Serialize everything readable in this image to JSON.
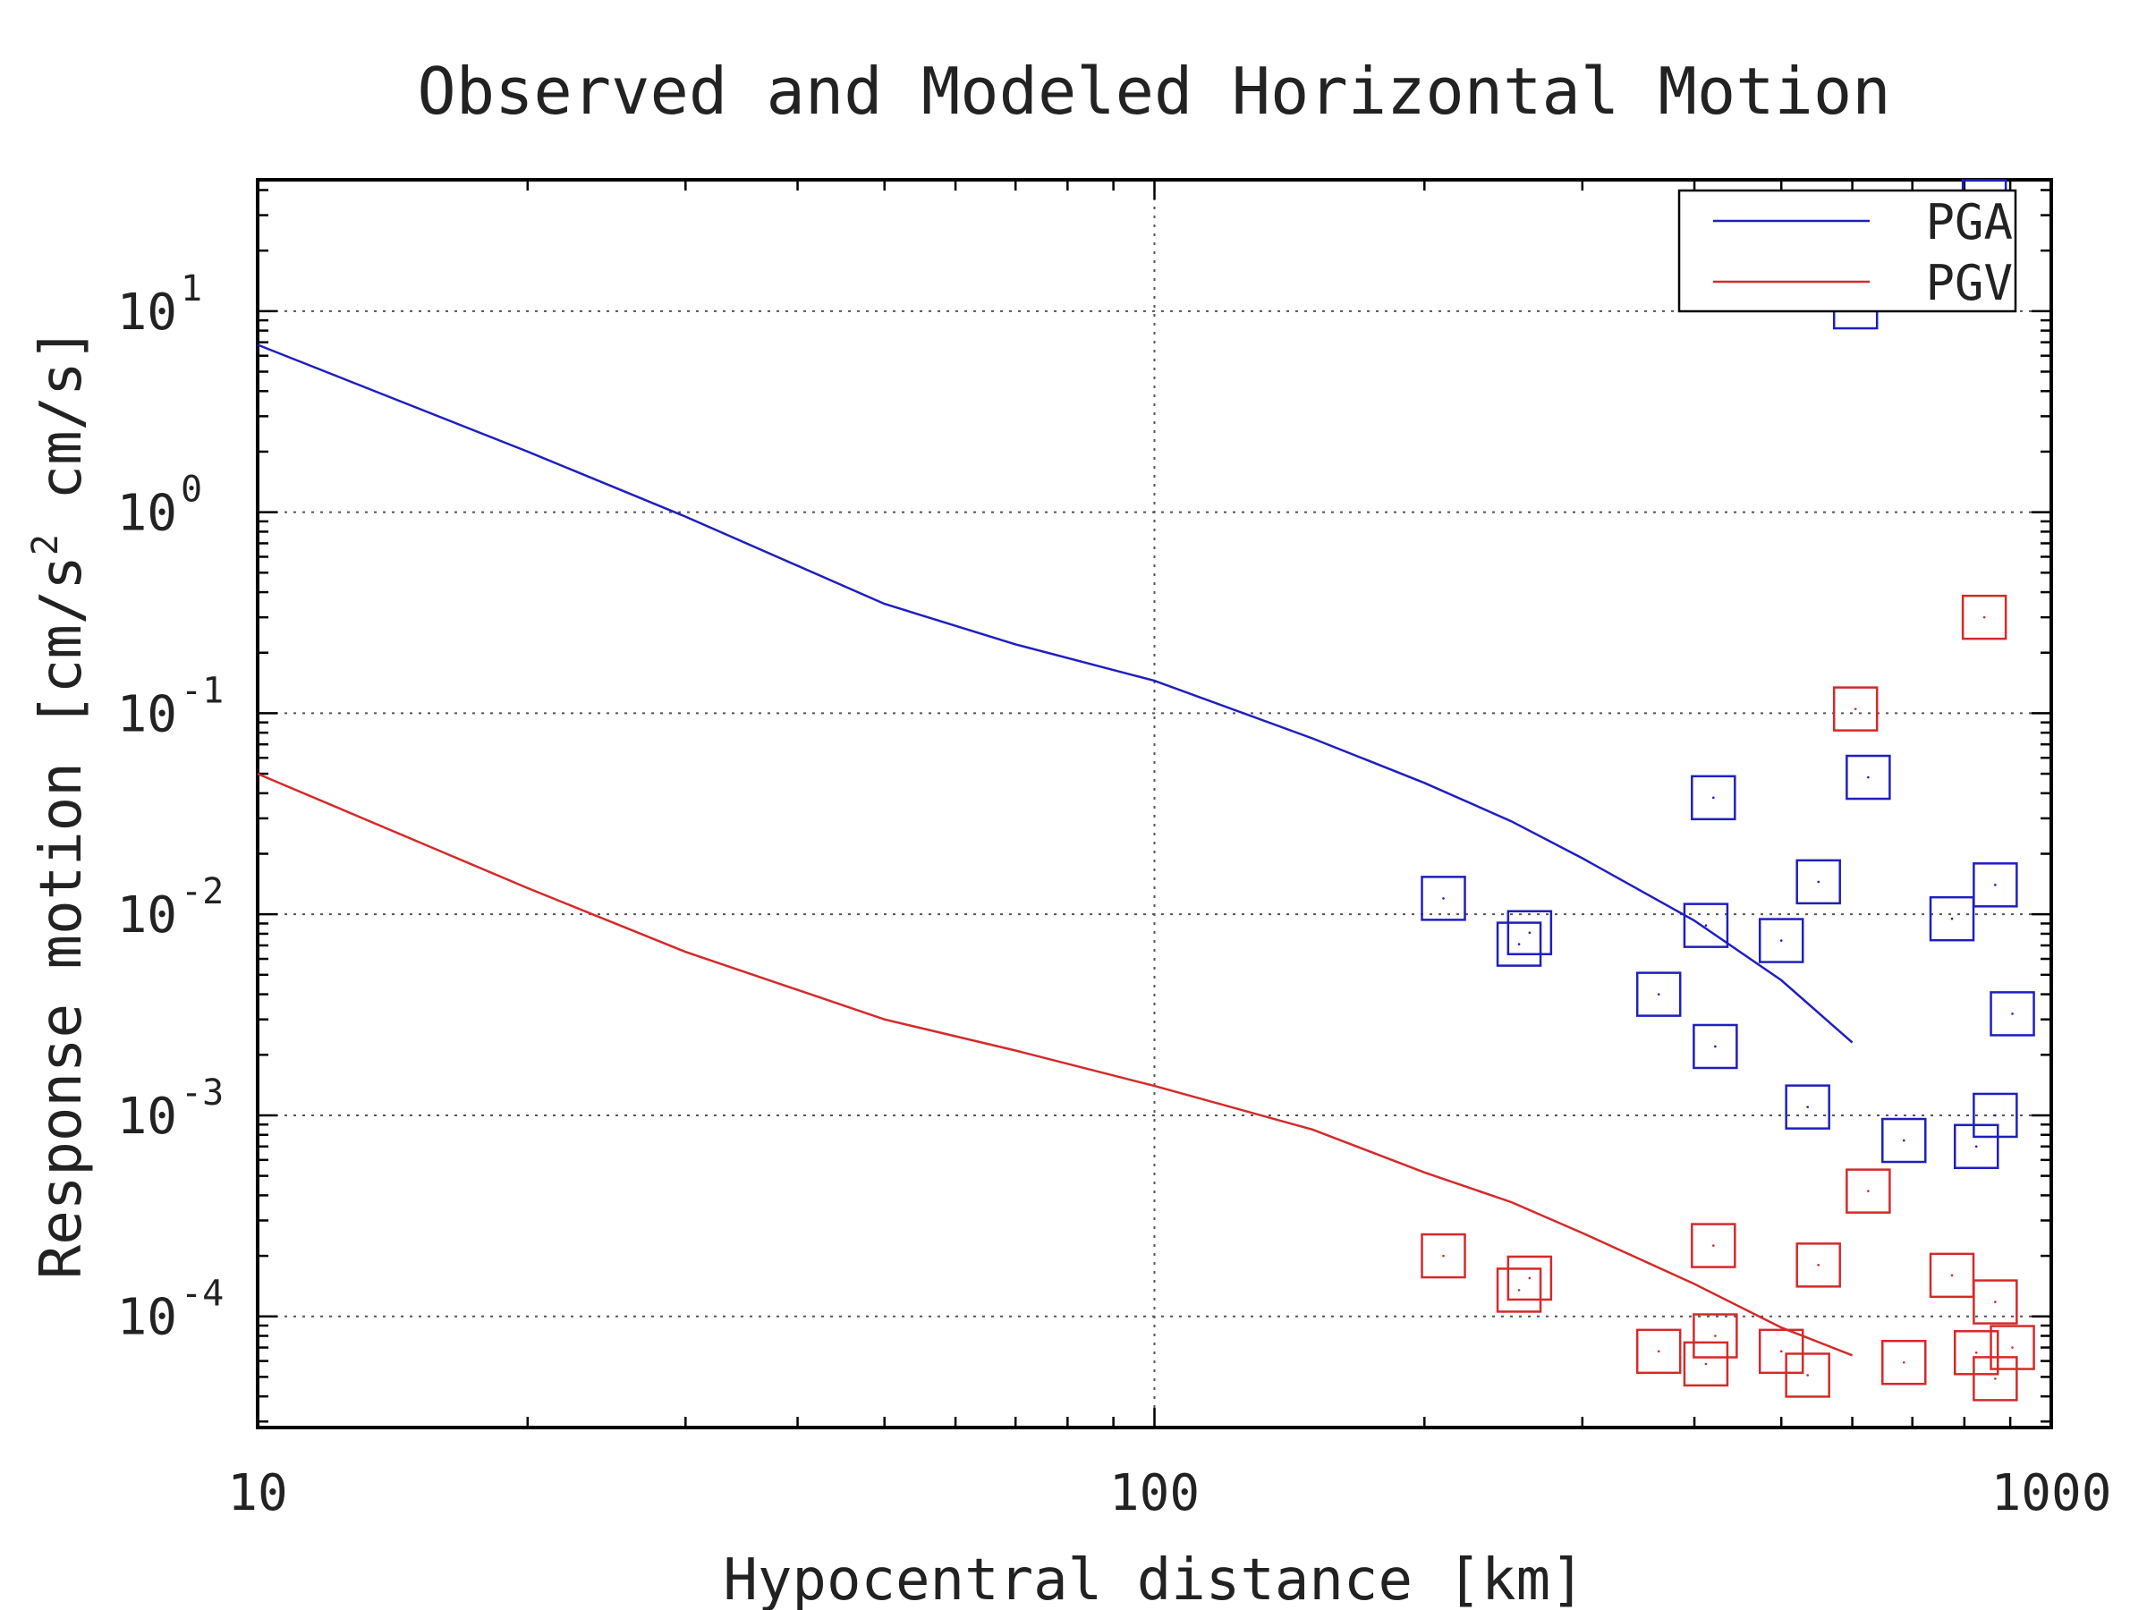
{
  "chart_data": {
    "type": "scatter",
    "title": "Observed and Modeled Horizontal Motion",
    "xlabel": "Hypocentral distance [km]",
    "ylabel_parts": {
      "before": "Response motion  [cm/s",
      "sup": "2",
      "after": "  cm/s]"
    },
    "x_scale": "log",
    "y_scale": "log",
    "xlim": [
      10,
      1000
    ],
    "ylim": [
      2.8e-05,
      45
    ],
    "grid": true,
    "legend_position": "top-right",
    "x_ticks": [
      {
        "value": 10,
        "label": "10"
      },
      {
        "value": 100,
        "label": "100"
      },
      {
        "value": 1000,
        "label": "1000"
      }
    ],
    "y_ticks": [
      {
        "value": 0.0001,
        "base": "10",
        "exp": "-4"
      },
      {
        "value": 0.001,
        "base": "10",
        "exp": "-3"
      },
      {
        "value": 0.01,
        "base": "10",
        "exp": "-2"
      },
      {
        "value": 0.1,
        "base": "10",
        "exp": "-1"
      },
      {
        "value": 1,
        "base": "10",
        "exp": "0"
      },
      {
        "value": 10,
        "base": "10",
        "exp": "1"
      }
    ],
    "series": [
      {
        "name": "PGA",
        "color": "#1f1fbf",
        "curve": [
          [
            10,
            6.8
          ],
          [
            20,
            2.0
          ],
          [
            30,
            0.95
          ],
          [
            50,
            0.35
          ],
          [
            70,
            0.22
          ],
          [
            100,
            0.145
          ],
          [
            150,
            0.075
          ],
          [
            200,
            0.045
          ],
          [
            250,
            0.029
          ],
          [
            300,
            0.019
          ],
          [
            400,
            0.0093
          ],
          [
            500,
            0.0047
          ],
          [
            600,
            0.0023
          ]
        ],
        "points": [
          [
            210,
            0.012
          ],
          [
            255,
            0.0071
          ],
          [
            262,
            0.0081
          ],
          [
            365,
            0.004
          ],
          [
            412,
            0.0088
          ],
          [
            420,
            0.038
          ],
          [
            422,
            0.0022
          ],
          [
            500,
            0.0074
          ],
          [
            535,
            0.0011
          ],
          [
            550,
            0.0145
          ],
          [
            605,
            10.5
          ],
          [
            625,
            0.048
          ],
          [
            685,
            0.00075
          ],
          [
            775,
            0.0095
          ],
          [
            825,
            0.0007
          ],
          [
            842,
            35
          ],
          [
            866,
            0.014
          ],
          [
            866,
            0.001
          ],
          [
            905,
            0.0032
          ]
        ]
      },
      {
        "name": "PGV",
        "color": "#d42a2a",
        "curve": [
          [
            10,
            0.05
          ],
          [
            20,
            0.0135
          ],
          [
            30,
            0.0065
          ],
          [
            50,
            0.003
          ],
          [
            70,
            0.0021
          ],
          [
            100,
            0.0014
          ],
          [
            150,
            0.00085
          ],
          [
            200,
            0.00052
          ],
          [
            250,
            0.00037
          ],
          [
            300,
            0.00026
          ],
          [
            400,
            0.000145
          ],
          [
            500,
            8.8e-05
          ],
          [
            600,
            6.4e-05
          ]
        ],
        "points": [
          [
            210,
            0.0002
          ],
          [
            255,
            0.000135
          ],
          [
            262,
            0.000155
          ],
          [
            365,
            6.7e-05
          ],
          [
            412,
            5.8e-05
          ],
          [
            420,
            0.000225
          ],
          [
            422,
            8e-05
          ],
          [
            500,
            6.7e-05
          ],
          [
            535,
            5.1e-05
          ],
          [
            550,
            0.00018
          ],
          [
            605,
            0.105
          ],
          [
            625,
            0.00042
          ],
          [
            685,
            5.9e-05
          ],
          [
            775,
            0.00016
          ],
          [
            825,
            6.6e-05
          ],
          [
            842,
            0.3
          ],
          [
            866,
            0.000118
          ],
          [
            866,
            4.9e-05
          ],
          [
            905,
            7e-05
          ]
        ]
      }
    ]
  }
}
